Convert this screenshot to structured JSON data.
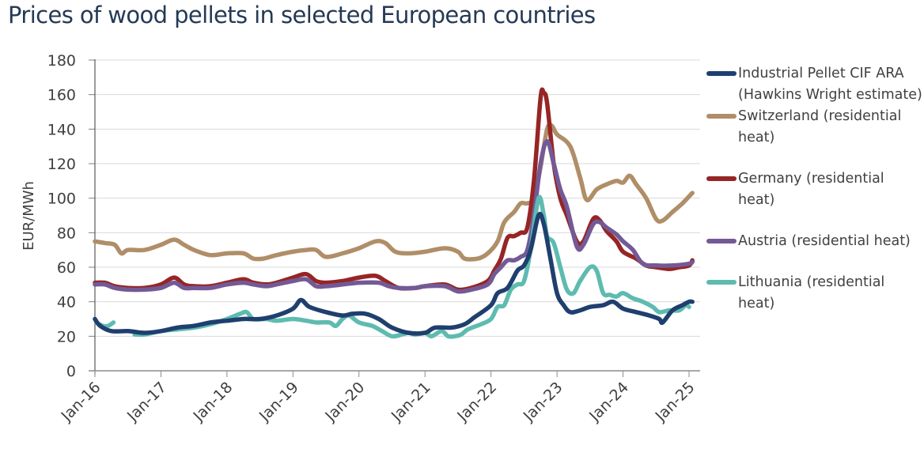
{
  "chart_data": {
    "type": "line",
    "title": "Prices of wood pellets in selected European countries",
    "xlabel": "",
    "ylabel": "EUR/MWh",
    "ylim": [
      0,
      180
    ],
    "yticks": [
      0,
      20,
      40,
      60,
      80,
      100,
      120,
      140,
      160,
      180
    ],
    "xlim": [
      2016.0,
      2025.0
    ],
    "xticks": [
      {
        "x": 2016.0,
        "label": "Jan-16"
      },
      {
        "x": 2017.0,
        "label": "Jan-17"
      },
      {
        "x": 2018.0,
        "label": "Jan-18"
      },
      {
        "x": 2019.0,
        "label": "Jan-19"
      },
      {
        "x": 2020.0,
        "label": "Jan-20"
      },
      {
        "x": 2021.0,
        "label": "Jan-21"
      },
      {
        "x": 2022.0,
        "label": "Jan-22"
      },
      {
        "x": 2023.0,
        "label": "Jan-23"
      },
      {
        "x": 2024.0,
        "label": "Jan-24"
      },
      {
        "x": 2025.0,
        "label": "Jan-25"
      }
    ],
    "grid": "horizontal",
    "legend_position": "right",
    "series": [
      {
        "name": "Industrial Pellet CIF ARA (Hawkins Wright estimate)",
        "color": "#1f3f6e",
        "points": [
          [
            2016.0,
            30
          ],
          [
            2016.08,
            26
          ],
          [
            2016.25,
            23
          ],
          [
            2016.5,
            23
          ],
          [
            2016.75,
            22
          ],
          [
            2017.0,
            23
          ],
          [
            2017.25,
            25
          ],
          [
            2017.5,
            26
          ],
          [
            2017.75,
            28
          ],
          [
            2018.0,
            29
          ],
          [
            2018.25,
            30
          ],
          [
            2018.5,
            30
          ],
          [
            2018.75,
            32
          ],
          [
            2019.0,
            36
          ],
          [
            2019.12,
            41
          ],
          [
            2019.25,
            37
          ],
          [
            2019.5,
            34
          ],
          [
            2019.75,
            32
          ],
          [
            2019.9,
            33
          ],
          [
            2020.1,
            33
          ],
          [
            2020.3,
            30
          ],
          [
            2020.5,
            25
          ],
          [
            2020.75,
            22
          ],
          [
            2021.0,
            22
          ],
          [
            2021.15,
            25
          ],
          [
            2021.4,
            25
          ],
          [
            2021.6,
            27
          ],
          [
            2021.75,
            31
          ],
          [
            2022.0,
            38
          ],
          [
            2022.1,
            45
          ],
          [
            2022.25,
            48
          ],
          [
            2022.4,
            58
          ],
          [
            2022.5,
            61
          ],
          [
            2022.6,
            70
          ],
          [
            2022.72,
            90
          ],
          [
            2022.8,
            85
          ],
          [
            2022.9,
            65
          ],
          [
            2023.0,
            45
          ],
          [
            2023.1,
            38
          ],
          [
            2023.2,
            34
          ],
          [
            2023.35,
            35
          ],
          [
            2023.5,
            37
          ],
          [
            2023.7,
            38
          ],
          [
            2023.85,
            40
          ],
          [
            2024.0,
            36
          ],
          [
            2024.2,
            34
          ],
          [
            2024.4,
            32
          ],
          [
            2024.55,
            30
          ],
          [
            2024.6,
            28
          ],
          [
            2024.75,
            35
          ],
          [
            2024.9,
            38
          ],
          [
            2025.0,
            40
          ],
          [
            2025.05,
            40
          ]
        ]
      },
      {
        "name": "Switzerland (residential heat)",
        "color": "#b08e68",
        "points": [
          [
            2016.0,
            75
          ],
          [
            2016.15,
            74
          ],
          [
            2016.3,
            73
          ],
          [
            2016.4,
            68
          ],
          [
            2016.5,
            70
          ],
          [
            2016.75,
            70
          ],
          [
            2017.0,
            73
          ],
          [
            2017.2,
            76
          ],
          [
            2017.35,
            73
          ],
          [
            2017.5,
            70
          ],
          [
            2017.75,
            67
          ],
          [
            2018.0,
            68
          ],
          [
            2018.25,
            68
          ],
          [
            2018.4,
            65
          ],
          [
            2018.55,
            65
          ],
          [
            2018.75,
            67
          ],
          [
            2019.0,
            69
          ],
          [
            2019.2,
            70
          ],
          [
            2019.35,
            70
          ],
          [
            2019.5,
            66
          ],
          [
            2019.75,
            68
          ],
          [
            2020.0,
            71
          ],
          [
            2020.25,
            75
          ],
          [
            2020.4,
            74
          ],
          [
            2020.55,
            69
          ],
          [
            2020.75,
            68
          ],
          [
            2021.0,
            69
          ],
          [
            2021.3,
            71
          ],
          [
            2021.5,
            69
          ],
          [
            2021.6,
            65
          ],
          [
            2021.8,
            65
          ],
          [
            2021.95,
            68
          ],
          [
            2022.1,
            75
          ],
          [
            2022.2,
            86
          ],
          [
            2022.35,
            92
          ],
          [
            2022.45,
            97
          ],
          [
            2022.55,
            97
          ],
          [
            2022.65,
            100
          ],
          [
            2022.75,
            118
          ],
          [
            2022.85,
            140
          ],
          [
            2022.92,
            142
          ],
          [
            2023.0,
            137
          ],
          [
            2023.2,
            130
          ],
          [
            2023.35,
            112
          ],
          [
            2023.45,
            99
          ],
          [
            2023.6,
            105
          ],
          [
            2023.75,
            108
          ],
          [
            2023.9,
            110
          ],
          [
            2024.0,
            109
          ],
          [
            2024.1,
            113
          ],
          [
            2024.2,
            108
          ],
          [
            2024.35,
            100
          ],
          [
            2024.5,
            88
          ],
          [
            2024.6,
            87
          ],
          [
            2024.75,
            92
          ],
          [
            2024.9,
            97
          ],
          [
            2025.0,
            101
          ],
          [
            2025.05,
            103
          ]
        ]
      },
      {
        "name": "Germany (residential heat)",
        "color": "#962525",
        "points": [
          [
            2016.0,
            51
          ],
          [
            2016.15,
            51
          ],
          [
            2016.3,
            49
          ],
          [
            2016.5,
            48
          ],
          [
            2016.75,
            48
          ],
          [
            2017.0,
            50
          ],
          [
            2017.2,
            54
          ],
          [
            2017.35,
            50
          ],
          [
            2017.5,
            49
          ],
          [
            2017.75,
            49
          ],
          [
            2018.0,
            51
          ],
          [
            2018.25,
            53
          ],
          [
            2018.4,
            51
          ],
          [
            2018.6,
            50
          ],
          [
            2018.75,
            51
          ],
          [
            2019.0,
            54
          ],
          [
            2019.2,
            56
          ],
          [
            2019.35,
            52
          ],
          [
            2019.5,
            51
          ],
          [
            2019.75,
            52
          ],
          [
            2020.0,
            54
          ],
          [
            2020.25,
            55
          ],
          [
            2020.4,
            52
          ],
          [
            2020.6,
            48
          ],
          [
            2020.85,
            48
          ],
          [
            2021.0,
            49
          ],
          [
            2021.3,
            50
          ],
          [
            2021.5,
            47
          ],
          [
            2021.7,
            48
          ],
          [
            2021.95,
            52
          ],
          [
            2022.05,
            58
          ],
          [
            2022.15,
            65
          ],
          [
            2022.25,
            77
          ],
          [
            2022.35,
            78
          ],
          [
            2022.45,
            80
          ],
          [
            2022.55,
            83
          ],
          [
            2022.65,
            110
          ],
          [
            2022.75,
            158
          ],
          [
            2022.8,
            161
          ],
          [
            2022.85,
            155
          ],
          [
            2022.95,
            120
          ],
          [
            2023.05,
            100
          ],
          [
            2023.15,
            90
          ],
          [
            2023.3,
            75
          ],
          [
            2023.4,
            75
          ],
          [
            2023.55,
            88
          ],
          [
            2023.65,
            87
          ],
          [
            2023.75,
            81
          ],
          [
            2023.9,
            75
          ],
          [
            2024.0,
            69
          ],
          [
            2024.2,
            65
          ],
          [
            2024.35,
            61
          ],
          [
            2024.5,
            60
          ],
          [
            2024.7,
            59
          ],
          [
            2024.85,
            60
          ],
          [
            2025.0,
            61
          ],
          [
            2025.05,
            64
          ]
        ]
      },
      {
        "name": "Austria (residential heat)",
        "color": "#735a96",
        "points": [
          [
            2016.0,
            50
          ],
          [
            2016.15,
            50
          ],
          [
            2016.3,
            48
          ],
          [
            2016.5,
            47
          ],
          [
            2016.75,
            47
          ],
          [
            2017.0,
            48
          ],
          [
            2017.2,
            51
          ],
          [
            2017.35,
            48
          ],
          [
            2017.5,
            48
          ],
          [
            2017.75,
            48
          ],
          [
            2018.0,
            50
          ],
          [
            2018.25,
            51
          ],
          [
            2018.4,
            50
          ],
          [
            2018.6,
            49
          ],
          [
            2018.75,
            50
          ],
          [
            2019.0,
            52
          ],
          [
            2019.2,
            53
          ],
          [
            2019.35,
            49
          ],
          [
            2019.5,
            49
          ],
          [
            2019.75,
            50
          ],
          [
            2020.0,
            51
          ],
          [
            2020.3,
            51
          ],
          [
            2020.45,
            49
          ],
          [
            2020.6,
            48
          ],
          [
            2020.85,
            48
          ],
          [
            2021.0,
            49
          ],
          [
            2021.3,
            49
          ],
          [
            2021.5,
            46
          ],
          [
            2021.7,
            47
          ],
          [
            2021.95,
            50
          ],
          [
            2022.05,
            56
          ],
          [
            2022.15,
            60
          ],
          [
            2022.25,
            64
          ],
          [
            2022.35,
            64
          ],
          [
            2022.45,
            66
          ],
          [
            2022.55,
            70
          ],
          [
            2022.65,
            90
          ],
          [
            2022.75,
            120
          ],
          [
            2022.85,
            133
          ],
          [
            2022.95,
            120
          ],
          [
            2023.05,
            105
          ],
          [
            2023.15,
            95
          ],
          [
            2023.3,
            72
          ],
          [
            2023.4,
            73
          ],
          [
            2023.55,
            85
          ],
          [
            2023.65,
            86
          ],
          [
            2023.75,
            83
          ],
          [
            2023.9,
            79
          ],
          [
            2024.0,
            75
          ],
          [
            2024.15,
            70
          ],
          [
            2024.3,
            62
          ],
          [
            2024.5,
            61
          ],
          [
            2024.75,
            61
          ],
          [
            2025.0,
            62
          ],
          [
            2025.05,
            63
          ]
        ]
      },
      {
        "name": "Lithuania (residential heat)",
        "color": "#5ebbb0",
        "segments": [
          [
            [
              2016.02,
              28
            ],
            [
              2016.12,
              26
            ],
            [
              2016.2,
              26
            ],
            [
              2016.28,
              28
            ]
          ],
          [
            [
              2016.6,
              21
            ],
            [
              2016.75,
              21
            ],
            [
              2017.0,
              23
            ],
            [
              2017.25,
              24
            ],
            [
              2017.5,
              25
            ],
            [
              2017.75,
              27
            ],
            [
              2018.0,
              30
            ],
            [
              2018.2,
              33
            ],
            [
              2018.3,
              34
            ],
            [
              2018.4,
              30
            ],
            [
              2018.6,
              30
            ],
            [
              2018.75,
              29
            ],
            [
              2019.0,
              30
            ],
            [
              2019.2,
              29
            ],
            [
              2019.35,
              28
            ],
            [
              2019.55,
              28
            ],
            [
              2019.65,
              26
            ],
            [
              2019.75,
              30
            ],
            [
              2019.85,
              32
            ],
            [
              2020.0,
              28
            ],
            [
              2020.2,
              26
            ],
            [
              2020.35,
              23
            ],
            [
              2020.5,
              20
            ],
            [
              2020.65,
              21
            ],
            [
              2020.75,
              22
            ],
            [
              2020.85,
              21
            ],
            [
              2021.0,
              22
            ],
            [
              2021.1,
              20
            ],
            [
              2021.25,
              23
            ],
            [
              2021.35,
              20
            ],
            [
              2021.45,
              20
            ],
            [
              2021.55,
              21
            ],
            [
              2021.65,
              24
            ],
            [
              2021.85,
              27
            ],
            [
              2022.0,
              30
            ],
            [
              2022.1,
              37
            ],
            [
              2022.2,
              38
            ],
            [
              2022.3,
              47
            ],
            [
              2022.4,
              50
            ],
            [
              2022.5,
              52
            ],
            [
              2022.6,
              70
            ],
            [
              2022.72,
              100
            ],
            [
              2022.8,
              90
            ],
            [
              2022.85,
              78
            ],
            [
              2022.95,
              74
            ],
            [
              2023.05,
              60
            ],
            [
              2023.15,
              47
            ],
            [
              2023.25,
              45
            ],
            [
              2023.35,
              52
            ],
            [
              2023.5,
              60
            ],
            [
              2023.6,
              58
            ],
            [
              2023.7,
              45
            ],
            [
              2023.8,
              44
            ],
            [
              2023.9,
              43
            ],
            [
              2024.0,
              45
            ],
            [
              2024.15,
              42
            ],
            [
              2024.3,
              40
            ],
            [
              2024.45,
              37
            ],
            [
              2024.55,
              34
            ],
            [
              2024.7,
              35
            ],
            [
              2024.85,
              35
            ],
            [
              2024.95,
              38
            ],
            [
              2025.0,
              37
            ]
          ]
        ]
      }
    ]
  }
}
